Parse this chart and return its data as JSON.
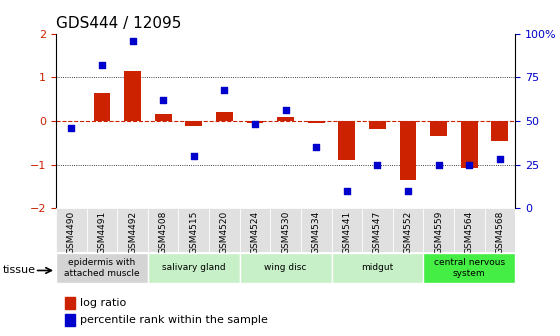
{
  "title": "GDS444 / 12095",
  "samples": [
    "GSM4490",
    "GSM4491",
    "GSM4492",
    "GSM4508",
    "GSM4515",
    "GSM4520",
    "GSM4524",
    "GSM4530",
    "GSM4534",
    "GSM4541",
    "GSM4547",
    "GSM4552",
    "GSM4559",
    "GSM4564",
    "GSM4568"
  ],
  "log_ratio": [
    0.0,
    0.65,
    1.15,
    0.15,
    -0.12,
    0.2,
    -0.05,
    0.08,
    -0.05,
    -0.9,
    -0.18,
    -1.35,
    -0.35,
    -1.08,
    -0.45
  ],
  "percentile": [
    46,
    82,
    96,
    62,
    30,
    68,
    48,
    56,
    35,
    10,
    25,
    10,
    25,
    25,
    28
  ],
  "ylim_left": [
    -2,
    2
  ],
  "ylim_right": [
    0,
    100
  ],
  "bar_color": "#cc2200",
  "dot_color": "#0000cc",
  "hline_color": "#cc2200",
  "tissue_groups": [
    {
      "label": "epidermis with\nattached muscle",
      "start": 0,
      "end": 2,
      "color": "#d4d4d4"
    },
    {
      "label": "salivary gland",
      "start": 3,
      "end": 5,
      "color": "#c8f0c8"
    },
    {
      "label": "wing disc",
      "start": 6,
      "end": 8,
      "color": "#c8f0c8"
    },
    {
      "label": "midgut",
      "start": 9,
      "end": 11,
      "color": "#c8f0c8"
    },
    {
      "label": "central nervous\nsystem",
      "start": 12,
      "end": 14,
      "color": "#44ee44"
    }
  ],
  "legend_bar_color": "#cc2200",
  "legend_dot_color": "#0000cc",
  "bg_color": "#ffffff",
  "tick_label_color_left": "#cc2200",
  "tick_label_color_right": "#0000cc"
}
